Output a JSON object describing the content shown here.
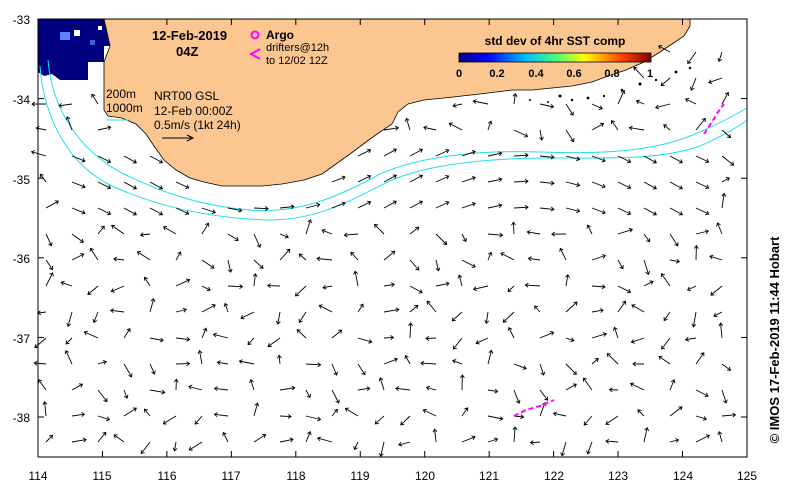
{
  "map": {
    "date": "12-Feb-2019",
    "time": "04Z",
    "legend": {
      "argo_label": "Argo",
      "drifters_label": "drifters@12h",
      "drifters_to": "to 12/02 12Z"
    },
    "colorbar": {
      "title": "std dev of 4hr SST comp",
      "ticks": [
        "0",
        "0.2",
        "0.4",
        "0.6",
        "0.8",
        "1"
      ]
    },
    "info": {
      "contour_200": "200m",
      "contour_1000": "1000m",
      "product": "NRT00 GSL",
      "product_time": "12-Feb 00:00Z",
      "scale": "0.5m/s (1kt 24h)"
    },
    "credit": "© IMOS 17-Feb-2019 11:44 Hobart",
    "lat_labels": [
      "-33",
      "-34",
      "-35",
      "-36",
      "-37",
      "-38"
    ],
    "lon_labels": [
      "114",
      "115",
      "116",
      "117",
      "118",
      "119",
      "120",
      "121",
      "122",
      "123",
      "124",
      "125"
    ],
    "colors": {
      "land": "#fbc690",
      "ocean": "#ffffff",
      "isobath": "#22e0e8",
      "drifter": "#ff00ff",
      "sst_low": "#000080"
    }
  }
}
